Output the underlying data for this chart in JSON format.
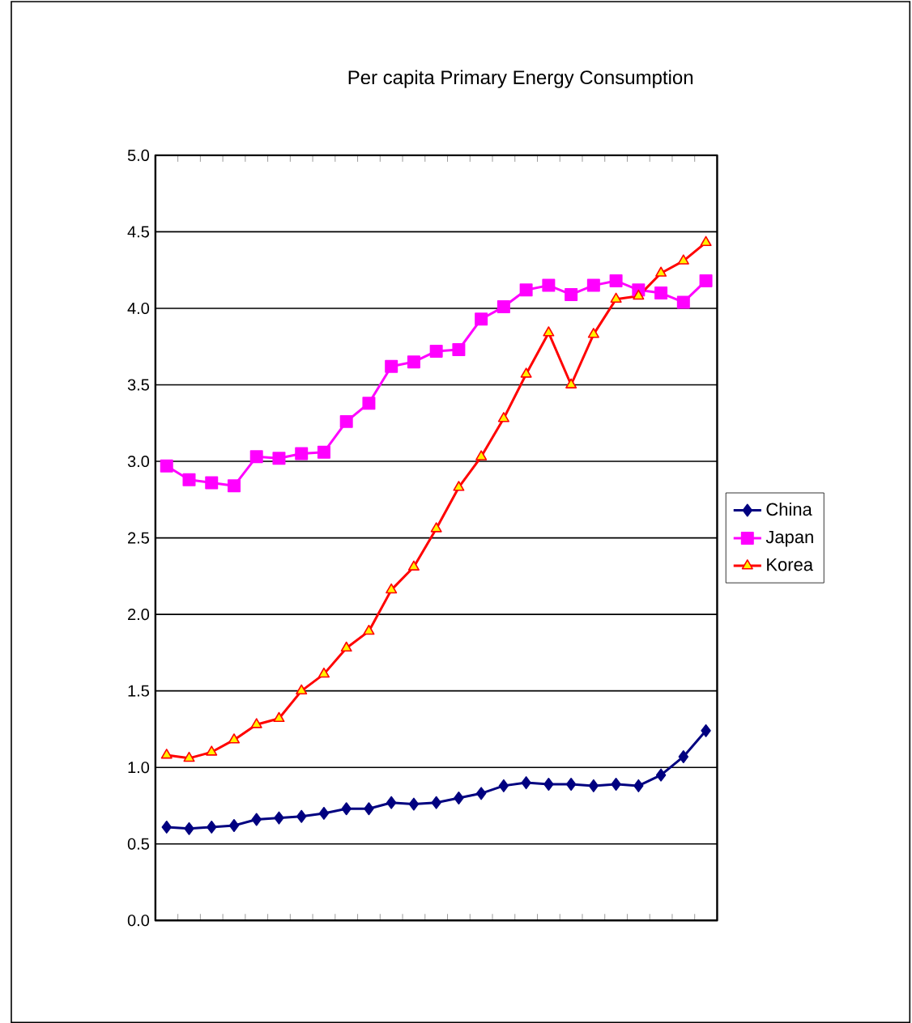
{
  "chart_data": {
    "type": "line",
    "title": "Per capita Primary Energy Consumption",
    "categories": [
      null,
      null,
      null,
      null,
      null,
      null,
      null,
      null,
      null,
      null,
      null,
      null,
      null,
      null,
      null,
      null,
      null,
      null,
      null,
      null,
      null,
      null,
      null,
      null,
      null
    ],
    "series": [
      {
        "name": "China",
        "color": "#000080",
        "marker": "diamond",
        "values": [
          0.61,
          0.6,
          0.61,
          0.62,
          0.66,
          0.67,
          0.68,
          0.7,
          0.73,
          0.73,
          0.77,
          0.76,
          0.77,
          0.8,
          0.83,
          0.88,
          0.9,
          0.89,
          0.89,
          0.88,
          0.89,
          0.88,
          0.95,
          1.07,
          1.24
        ]
      },
      {
        "name": "Japan",
        "color": "#ff00ff",
        "marker": "square",
        "values": [
          2.97,
          2.88,
          2.86,
          2.84,
          3.03,
          3.02,
          3.05,
          3.06,
          3.26,
          3.38,
          3.62,
          3.65,
          3.72,
          3.73,
          3.93,
          4.01,
          4.12,
          4.15,
          4.09,
          4.15,
          4.18,
          4.12,
          4.1,
          4.04,
          4.18
        ]
      },
      {
        "name": "Korea",
        "color": "#ff0000",
        "marker": "triangle",
        "values": [
          1.08,
          1.06,
          1.1,
          1.18,
          1.28,
          1.32,
          1.5,
          1.61,
          1.78,
          1.89,
          2.16,
          2.31,
          2.56,
          2.83,
          3.03,
          3.28,
          3.57,
          3.84,
          3.5,
          3.83,
          4.06,
          4.08,
          4.23,
          4.31,
          4.43
        ]
      }
    ],
    "ylim": [
      0,
      5
    ],
    "yticks": [
      {
        "value": 0,
        "label": "0.0"
      },
      {
        "value": 0.5,
        "label": "0.5"
      },
      {
        "value": 1,
        "label": "1.0"
      },
      {
        "value": 1.5,
        "label": "1.5"
      },
      {
        "value": 2,
        "label": "2.0"
      },
      {
        "value": 2.5,
        "label": "2.5"
      },
      {
        "value": 3,
        "label": "3.0"
      },
      {
        "value": 3.5,
        "label": "3.5"
      },
      {
        "value": 4,
        "label": "4.0"
      },
      {
        "value": 4.5,
        "label": "4.5"
      },
      {
        "value": 5,
        "label": "5.0"
      }
    ],
    "grid": "y",
    "legend": "right"
  }
}
